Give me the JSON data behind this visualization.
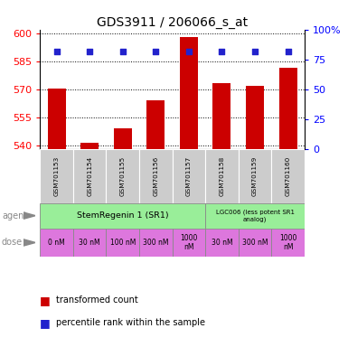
{
  "title": "GDS3911 / 206066_s_at",
  "samples": [
    "GSM701153",
    "GSM701154",
    "GSM701155",
    "GSM701156",
    "GSM701157",
    "GSM701158",
    "GSM701159",
    "GSM701160"
  ],
  "bar_values": [
    570.5,
    541.2,
    549.0,
    564.0,
    598.0,
    573.5,
    572.0,
    581.5
  ],
  "percentile_values": [
    590,
    590,
    590,
    590,
    590,
    590,
    590,
    590
  ],
  "ylim_left": [
    538,
    602
  ],
  "ylim_right": [
    0,
    100
  ],
  "yticks_left": [
    540,
    555,
    570,
    585,
    600
  ],
  "yticks_right": [
    0,
    25,
    50,
    75,
    100
  ],
  "bar_color": "#cc0000",
  "percentile_color": "#2222cc",
  "agent_sr1_label": "StemRegenin 1 (SR1)",
  "agent_lgc_label": "LGC006 (less potent SR1\nanalog)",
  "agent_color": "#99ee99",
  "dose_color": "#dd77dd",
  "doses": [
    "0 nM",
    "30 nM",
    "100 nM",
    "300 nM",
    "1000\nnM",
    "30 nM",
    "300 nM",
    "1000\nnM"
  ],
  "label_transformed": "transformed count",
  "label_percentile": "percentile rank within the sample",
  "sample_bg": "#cccccc",
  "title_fontsize": 10
}
